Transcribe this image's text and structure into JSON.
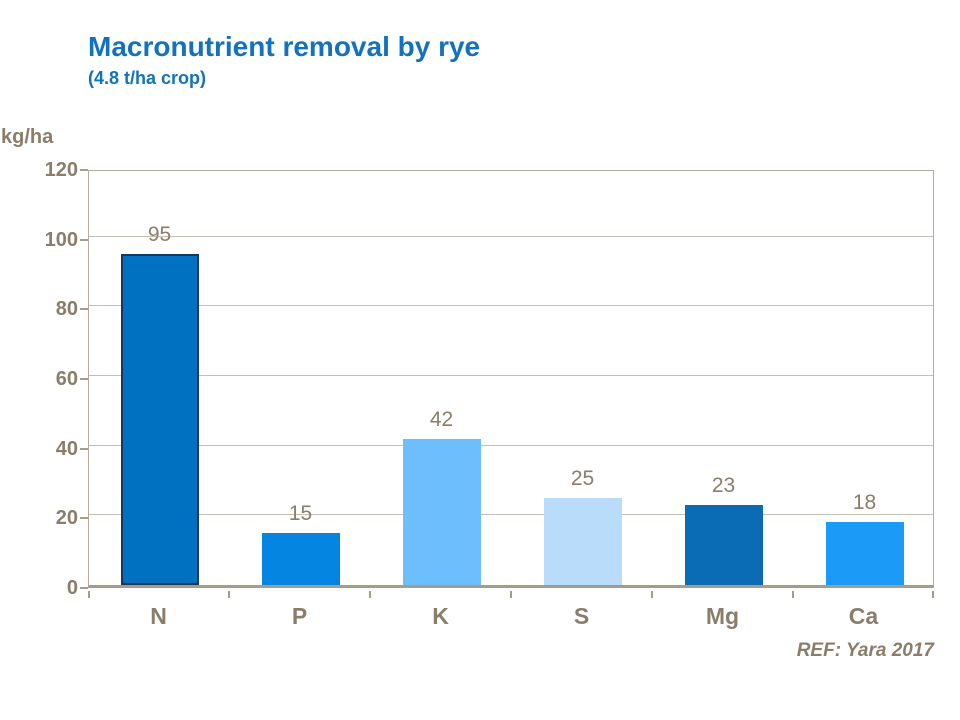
{
  "header": {
    "title": "Macronutrient removal by rye",
    "subtitle": "(4.8 t/ha crop)"
  },
  "footer": {
    "reference": "REF: Yara 2017"
  },
  "colors": {
    "title_blue": "#1272BD",
    "text_brown": "#8A7D6B",
    "gridline": "#C6BEB2",
    "plot_frame": "#B5AC9F",
    "axis_line": "#A69C8E"
  },
  "chart_data": {
    "type": "bar",
    "title": "Macronutrient removal by rye",
    "subtitle": "(4.8 t/ha crop)",
    "ylabel": "kg/ha",
    "xlabel": "",
    "categories": [
      "N",
      "P",
      "K",
      "S",
      "Mg",
      "Ca"
    ],
    "values": [
      95,
      15,
      42,
      25,
      23,
      18
    ],
    "bar_colors": [
      "#0070C0",
      "#0485E1",
      "#6CBFFC",
      "#B8DCFA",
      "#0A6CB5",
      "#1B9BF7"
    ],
    "bar_border_colors": [
      "#17375E",
      "",
      "",
      "",
      "",
      ""
    ],
    "ylim": [
      0,
      120
    ],
    "ytick_step": 20,
    "yticks": [
      0,
      20,
      40,
      60,
      80,
      100,
      120
    ],
    "grid": true,
    "legend": "none",
    "annotation": "REF: Yara 2017"
  }
}
